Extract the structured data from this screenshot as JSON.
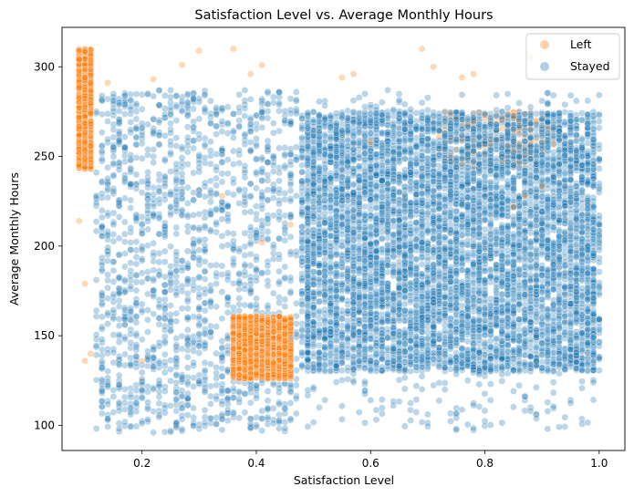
{
  "chart_data": {
    "type": "scatter",
    "title": "Satisfaction Level vs. Average Monthly Hours",
    "xlabel": "Satisfaction Level",
    "ylabel": "Average Monthly Hours",
    "xlim": [
      0.06,
      1.045
    ],
    "ylim": [
      86,
      322
    ],
    "xticks": [
      0.2,
      0.4,
      0.6,
      0.8,
      1.0
    ],
    "xtick_labels": [
      "0.2",
      "0.4",
      "0.6",
      "0.8",
      "1.0"
    ],
    "yticks": [
      100,
      150,
      200,
      250,
      300
    ],
    "ytick_labels": [
      "100",
      "150",
      "200",
      "250",
      "300"
    ],
    "grid": false,
    "legend_position": "top-right",
    "series": [
      {
        "name": "Left",
        "color": "#ff7f0e",
        "clusters": [
          {
            "x_range": [
              0.09,
              0.11
            ],
            "y_range": [
              243,
              310
            ],
            "count": 900
          },
          {
            "x_range": [
              0.36,
              0.46
            ],
            "y_range": [
              126,
              161
            ],
            "count": 1500
          },
          {
            "x_range": [
              0.72,
              0.92
            ],
            "y_range": [
              244,
              275
            ],
            "count": 180
          }
        ],
        "points": [
          {
            "x": 0.09,
            "y": 214
          },
          {
            "x": 0.1,
            "y": 179
          },
          {
            "x": 0.11,
            "y": 140
          },
          {
            "x": 0.1,
            "y": 136
          },
          {
            "x": 0.14,
            "y": 291
          },
          {
            "x": 0.22,
            "y": 293
          },
          {
            "x": 0.27,
            "y": 301
          },
          {
            "x": 0.3,
            "y": 309
          },
          {
            "x": 0.36,
            "y": 310
          },
          {
            "x": 0.39,
            "y": 296
          },
          {
            "x": 0.41,
            "y": 301
          },
          {
            "x": 0.55,
            "y": 294
          },
          {
            "x": 0.57,
            "y": 296
          },
          {
            "x": 0.69,
            "y": 310
          },
          {
            "x": 0.71,
            "y": 300
          },
          {
            "x": 0.76,
            "y": 294
          },
          {
            "x": 0.78,
            "y": 296
          },
          {
            "x": 0.87,
            "y": 228
          },
          {
            "x": 0.85,
            "y": 222
          },
          {
            "x": 0.9,
            "y": 233
          },
          {
            "x": 0.41,
            "y": 202
          },
          {
            "x": 0.46,
            "y": 212
          },
          {
            "x": 0.2,
            "y": 136
          },
          {
            "x": 0.34,
            "y": 228
          },
          {
            "x": 0.6,
            "y": 258
          },
          {
            "x": 0.88,
            "y": 305
          }
        ]
      },
      {
        "name": "Stayed",
        "color": "#1f77b4",
        "clusters": [
          {
            "x_range": [
              0.48,
              1.0
            ],
            "y_range": [
              130,
              275
            ],
            "count": 6500
          },
          {
            "x_range": [
              0.12,
              0.47
            ],
            "y_range": [
              96,
              287
            ],
            "count": 1700
          },
          {
            "x_range": [
              0.48,
              1.0
            ],
            "y_range": [
              96,
              287
            ],
            "count": 700
          }
        ]
      }
    ]
  }
}
